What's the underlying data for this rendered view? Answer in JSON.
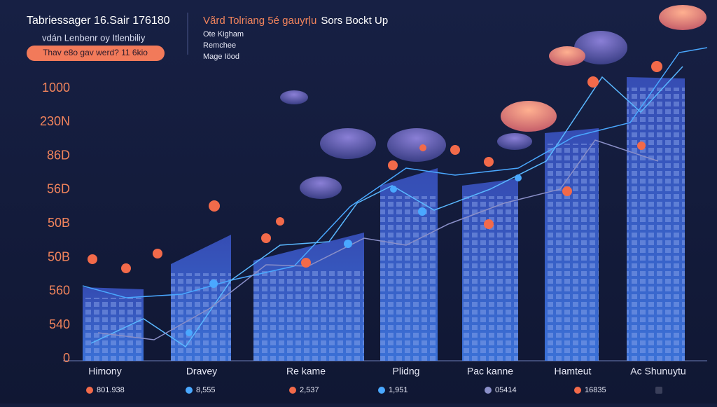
{
  "header": {
    "title": "Tabriessager 16.Sair 176180",
    "subtitle": "vdán Lenbenr oy Itlenbiliy",
    "badge": "Thav e8o gav werd? 11 6kio"
  },
  "legend": {
    "title_accent": "Vãrd Tolriang 5é gauyrļu",
    "title": "Sors Bockt Up",
    "items": [
      "Ote Kigham",
      "Remchee",
      "Mage Iöod"
    ]
  },
  "axis_labels": [
    "1000",
    "230N",
    "86D",
    "56D",
    "50B",
    "50B",
    "560",
    "540",
    "0"
  ],
  "categories": [
    "Himony",
    "Dravey",
    "Re kame",
    "Plidng",
    "Pac kanne",
    "Hamteut",
    "Ac Shunuytu"
  ],
  "footer_values": [
    "801.938",
    "8,555",
    "2,537",
    "1,951",
    "05414",
    "16835"
  ]
}
